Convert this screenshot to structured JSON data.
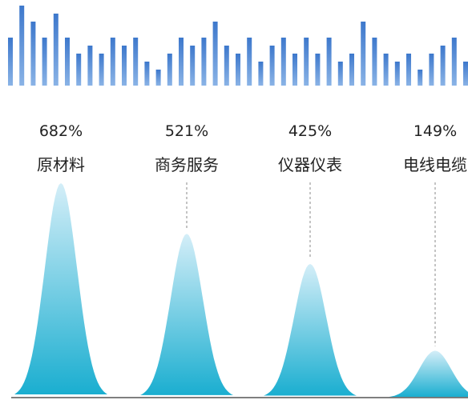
{
  "chart_data": {
    "type": "area",
    "title": "",
    "series": [
      {
        "category": "原材料",
        "value": 682,
        "label": "682%"
      },
      {
        "category": "商务服务",
        "value": 521,
        "label": "521%"
      },
      {
        "category": "仪器仪表",
        "value": 425,
        "label": "425%"
      },
      {
        "category": "电线电缆",
        "value": 149,
        "label": "149%"
      }
    ],
    "decorative_bars": [
      6,
      10,
      8,
      6,
      9,
      6,
      4,
      5,
      4,
      6,
      5,
      6,
      3,
      2,
      4,
      6,
      5,
      6,
      8,
      5,
      4,
      6,
      3,
      5,
      6,
      4,
      6,
      4,
      6,
      3,
      4,
      8,
      6,
      4,
      3,
      4,
      2,
      4,
      5,
      6,
      3,
      6,
      4,
      6
    ],
    "colors": {
      "bar": "#4b86d2",
      "peak_top": "#d4eef8",
      "peak_bottom": "#1aaed0",
      "baseline": "#555555"
    }
  }
}
